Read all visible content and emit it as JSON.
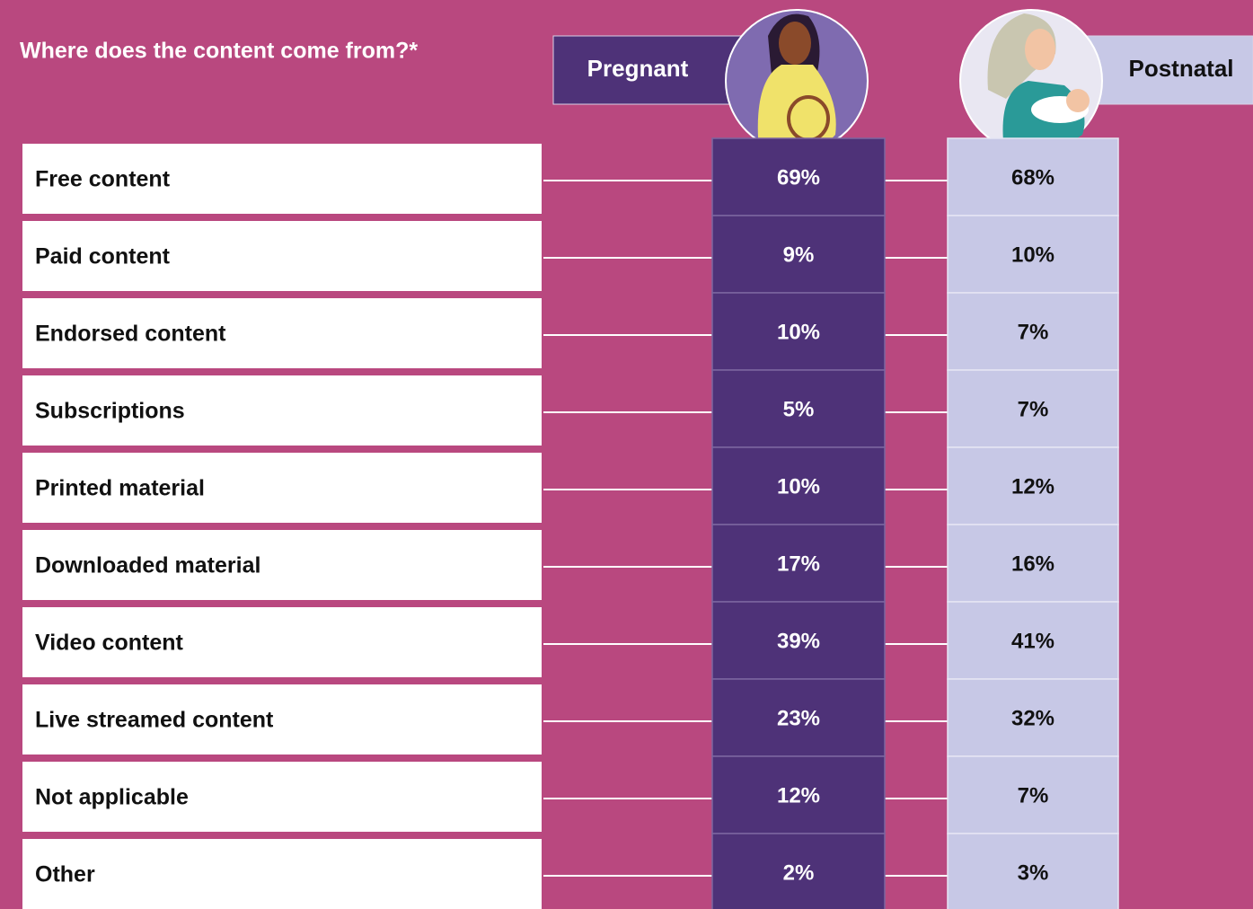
{
  "title": "Where does the content come from?*",
  "columns": [
    "Pregnant",
    "Postnatal"
  ],
  "rows": [
    {
      "label": "Free content",
      "values": [
        "69%",
        "68%"
      ]
    },
    {
      "label": "Paid content",
      "values": [
        "9%",
        "10%"
      ]
    },
    {
      "label": "Endorsed content",
      "values": [
        "10%",
        "7%"
      ]
    },
    {
      "label": "Subscriptions",
      "values": [
        "5%",
        "7%"
      ]
    },
    {
      "label": "Printed material",
      "values": [
        "10%",
        "12%"
      ]
    },
    {
      "label": "Downloaded material",
      "values": [
        "17%",
        "16%"
      ]
    },
    {
      "label": "Video content",
      "values": [
        "39%",
        "41%"
      ]
    },
    {
      "label": "Live streamed content",
      "values": [
        "23%",
        "32%"
      ]
    },
    {
      "label": "Not applicable",
      "values": [
        "12%",
        "7%"
      ]
    },
    {
      "label": "Other",
      "values": [
        "2%",
        "3%"
      ]
    }
  ]
}
